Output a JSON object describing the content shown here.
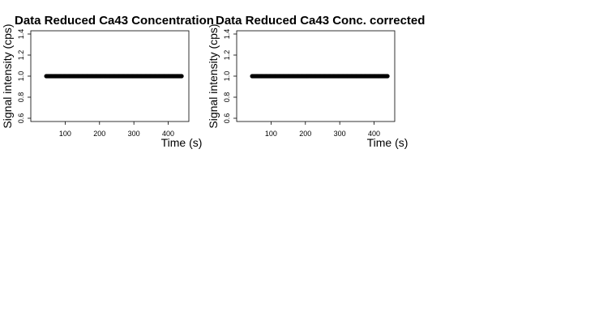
{
  "chart_data": [
    {
      "type": "scatter",
      "title": "Data Reduced Ca43 Concentration",
      "xlabel": "Time (s)",
      "ylabel": "Signal intensity (cps)",
      "xlim": [
        0,
        460
      ],
      "ylim": [
        0.6,
        1.4
      ],
      "xticks": [
        100,
        200,
        300,
        400
      ],
      "yticks": [
        0.6,
        0.8,
        1.0,
        1.2,
        1.4
      ],
      "xtick_labels": [
        "100",
        "200",
        "300",
        "400"
      ],
      "ytick_labels": [
        "0.6",
        "0.8",
        "1.0",
        "1.2",
        "1.4"
      ],
      "series": [
        {
          "name": "Ca43",
          "x_start": 45,
          "x_end": 440,
          "x_step": 2,
          "y": 1.0
        }
      ]
    },
    {
      "type": "scatter",
      "title": "Data Reduced Ca43 Conc. corrected",
      "xlabel": "Time (s)",
      "ylabel": "Signal intensity (cps)",
      "xlim": [
        0,
        460
      ],
      "ylim": [
        0.6,
        1.4
      ],
      "xticks": [
        100,
        200,
        300,
        400
      ],
      "yticks": [
        0.6,
        0.8,
        1.0,
        1.2,
        1.4
      ],
      "xtick_labels": [
        "100",
        "200",
        "300",
        "400"
      ],
      "ytick_labels": [
        "0.6",
        "0.8",
        "1.0",
        "1.2",
        "1.4"
      ],
      "series": [
        {
          "name": "Ca43",
          "x_start": 45,
          "x_end": 440,
          "x_step": 2,
          "y": 1.0
        }
      ]
    }
  ]
}
